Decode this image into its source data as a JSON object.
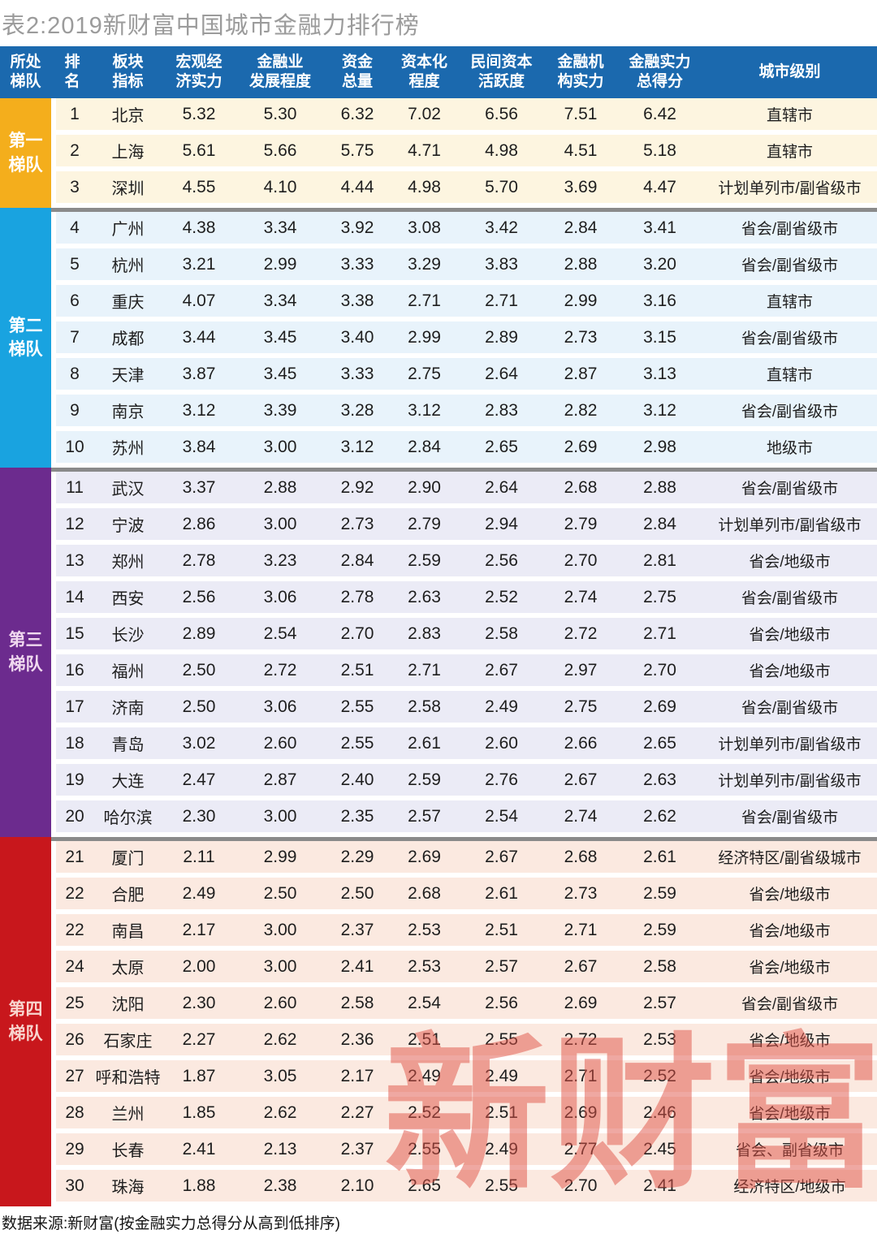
{
  "title": "表2:2019新财富中国城市金融力排行榜",
  "footer": "数据来源:新财富(按金融实力总得分从高到低排序)",
  "watermark": {
    "text": "新财富",
    "color": "#e15347",
    "opacity": 0.5
  },
  "colors": {
    "header_bg": "#1b69ae",
    "header_text": "#ffffff",
    "title_text": "#9b9b9b",
    "tier_separator": "#8a8a8a"
  },
  "header": {
    "columns": [
      {
        "key": "tier",
        "label": "所处\n梯队"
      },
      {
        "key": "rank",
        "label": "排\n名"
      },
      {
        "key": "city",
        "label": "板块\n指标"
      },
      {
        "key": "macro-economy",
        "label": "宏观经\n济实力"
      },
      {
        "key": "financial-industry",
        "label": "金融业\n发展程度"
      },
      {
        "key": "total-funds",
        "label": "资金\n总量"
      },
      {
        "key": "capitalization",
        "label": "资本化\n程度"
      },
      {
        "key": "private-capital",
        "label": "民间资本\n活跃度"
      },
      {
        "key": "financial-institutions",
        "label": "金融机\n构实力"
      },
      {
        "key": "total-score",
        "label": "金融实力\n总得分"
      },
      {
        "key": "city-level",
        "label": "城市级别"
      }
    ]
  },
  "tiers": [
    {
      "tier": 1,
      "name": "第一\n梯队",
      "label_bg": "#f4ae1c",
      "label_text": "#ffffff",
      "row_bg": "#fdf5e0"
    },
    {
      "tier": 2,
      "name": "第二\n梯队",
      "label_bg": "#19a3e0",
      "label_text": "#ffffff",
      "row_bg": "#e8f3fb"
    },
    {
      "tier": 3,
      "name": "第三\n梯队",
      "label_bg": "#6c2b8e",
      "label_text": "#f0d9ef",
      "row_bg": "#ebebf6"
    },
    {
      "tier": 4,
      "name": "第四\n梯队",
      "label_bg": "#c8171c",
      "label_text": "#f8d5ce",
      "row_bg": "#fbe9e0"
    }
  ],
  "chart_data": {
    "type": "table",
    "title": "表2:2019新财富中国城市金融力排行榜",
    "columns": [
      "所处梯队",
      "排名",
      "板块指标",
      "宏观经济实力",
      "金融业发展程度",
      "资金总量",
      "资本化程度",
      "民间资本活跃度",
      "金融机构实力",
      "金融实力总得分",
      "城市级别"
    ],
    "rows": [
      {
        "tier": 1,
        "rank": "1",
        "city": "北京",
        "values": [
          "5.32",
          "5.30",
          "6.32",
          "7.02",
          "6.56",
          "7.51",
          "6.42"
        ],
        "level": "直辖市"
      },
      {
        "tier": 1,
        "rank": "2",
        "city": "上海",
        "values": [
          "5.61",
          "5.66",
          "5.75",
          "4.71",
          "4.98",
          "4.51",
          "5.18"
        ],
        "level": "直辖市"
      },
      {
        "tier": 1,
        "rank": "3",
        "city": "深圳",
        "values": [
          "4.55",
          "4.10",
          "4.44",
          "4.98",
          "5.70",
          "3.69",
          "4.47"
        ],
        "level": "计划单列市/副省级市"
      },
      {
        "tier": 2,
        "rank": "4",
        "city": "广州",
        "values": [
          "4.38",
          "3.34",
          "3.92",
          "3.08",
          "3.42",
          "2.84",
          "3.41"
        ],
        "level": "省会/副省级市"
      },
      {
        "tier": 2,
        "rank": "5",
        "city": "杭州",
        "values": [
          "3.21",
          "2.99",
          "3.33",
          "3.29",
          "3.83",
          "2.88",
          "3.20"
        ],
        "level": "省会/副省级市"
      },
      {
        "tier": 2,
        "rank": "6",
        "city": "重庆",
        "values": [
          "4.07",
          "3.34",
          "3.38",
          "2.71",
          "2.71",
          "2.99",
          "3.16"
        ],
        "level": "直辖市"
      },
      {
        "tier": 2,
        "rank": "7",
        "city": "成都",
        "values": [
          "3.44",
          "3.45",
          "3.40",
          "2.99",
          "2.89",
          "2.73",
          "3.15"
        ],
        "level": "省会/副省级市"
      },
      {
        "tier": 2,
        "rank": "8",
        "city": "天津",
        "values": [
          "3.87",
          "3.45",
          "3.33",
          "2.75",
          "2.64",
          "2.87",
          "3.13"
        ],
        "level": "直辖市"
      },
      {
        "tier": 2,
        "rank": "9",
        "city": "南京",
        "values": [
          "3.12",
          "3.39",
          "3.28",
          "3.12",
          "2.83",
          "2.82",
          "3.12"
        ],
        "level": "省会/副省级市"
      },
      {
        "tier": 2,
        "rank": "10",
        "city": "苏州",
        "values": [
          "3.84",
          "3.00",
          "3.12",
          "2.84",
          "2.65",
          "2.69",
          "2.98"
        ],
        "level": "地级市"
      },
      {
        "tier": 3,
        "rank": "11",
        "city": "武汉",
        "values": [
          "3.37",
          "2.88",
          "2.92",
          "2.90",
          "2.64",
          "2.68",
          "2.88"
        ],
        "level": "省会/副省级市"
      },
      {
        "tier": 3,
        "rank": "12",
        "city": "宁波",
        "values": [
          "2.86",
          "3.00",
          "2.73",
          "2.79",
          "2.94",
          "2.79",
          "2.84"
        ],
        "level": "计划单列市/副省级市"
      },
      {
        "tier": 3,
        "rank": "13",
        "city": "郑州",
        "values": [
          "2.78",
          "3.23",
          "2.84",
          "2.59",
          "2.56",
          "2.70",
          "2.81"
        ],
        "level": "省会/地级市"
      },
      {
        "tier": 3,
        "rank": "14",
        "city": "西安",
        "values": [
          "2.56",
          "3.06",
          "2.78",
          "2.63",
          "2.52",
          "2.74",
          "2.75"
        ],
        "level": "省会/副省级市"
      },
      {
        "tier": 3,
        "rank": "15",
        "city": "长沙",
        "values": [
          "2.89",
          "2.54",
          "2.70",
          "2.83",
          "2.58",
          "2.72",
          "2.71"
        ],
        "level": "省会/地级市"
      },
      {
        "tier": 3,
        "rank": "16",
        "city": "福州",
        "values": [
          "2.50",
          "2.72",
          "2.51",
          "2.71",
          "2.67",
          "2.97",
          "2.70"
        ],
        "level": "省会/地级市"
      },
      {
        "tier": 3,
        "rank": "17",
        "city": "济南",
        "values": [
          "2.50",
          "3.06",
          "2.55",
          "2.58",
          "2.49",
          "2.75",
          "2.69"
        ],
        "level": "省会/副省级市"
      },
      {
        "tier": 3,
        "rank": "18",
        "city": "青岛",
        "values": [
          "3.02",
          "2.60",
          "2.55",
          "2.61",
          "2.60",
          "2.66",
          "2.65"
        ],
        "level": "计划单列市/副省级市"
      },
      {
        "tier": 3,
        "rank": "19",
        "city": "大连",
        "values": [
          "2.47",
          "2.87",
          "2.40",
          "2.59",
          "2.76",
          "2.67",
          "2.63"
        ],
        "level": "计划单列市/副省级市"
      },
      {
        "tier": 3,
        "rank": "20",
        "city": "哈尔滨",
        "values": [
          "2.30",
          "3.00",
          "2.35",
          "2.57",
          "2.54",
          "2.74",
          "2.62"
        ],
        "level": "省会/副省级市"
      },
      {
        "tier": 4,
        "rank": "21",
        "city": "厦门",
        "values": [
          "2.11",
          "2.99",
          "2.29",
          "2.69",
          "2.67",
          "2.68",
          "2.61"
        ],
        "level": "经济特区/副省级城市"
      },
      {
        "tier": 4,
        "rank": "22",
        "city": "合肥",
        "values": [
          "2.49",
          "2.50",
          "2.50",
          "2.68",
          "2.61",
          "2.73",
          "2.59"
        ],
        "level": "省会/地级市"
      },
      {
        "tier": 4,
        "rank": "22",
        "city": "南昌",
        "values": [
          "2.17",
          "3.00",
          "2.37",
          "2.53",
          "2.51",
          "2.71",
          "2.59"
        ],
        "level": "省会/地级市"
      },
      {
        "tier": 4,
        "rank": "24",
        "city": "太原",
        "values": [
          "2.00",
          "3.00",
          "2.41",
          "2.53",
          "2.57",
          "2.67",
          "2.58"
        ],
        "level": "省会/地级市"
      },
      {
        "tier": 4,
        "rank": "25",
        "city": "沈阳",
        "values": [
          "2.30",
          "2.60",
          "2.58",
          "2.54",
          "2.56",
          "2.69",
          "2.57"
        ],
        "level": "省会/副省级市"
      },
      {
        "tier": 4,
        "rank": "26",
        "city": "石家庄",
        "values": [
          "2.27",
          "2.62",
          "2.36",
          "2.51",
          "2.55",
          "2.72",
          "2.53"
        ],
        "level": "省会/地级市"
      },
      {
        "tier": 4,
        "rank": "27",
        "city": "呼和浩特",
        "values": [
          "1.87",
          "3.05",
          "2.17",
          "2.49",
          "2.49",
          "2.71",
          "2.52"
        ],
        "level": "省会/地级市"
      },
      {
        "tier": 4,
        "rank": "28",
        "city": "兰州",
        "values": [
          "1.85",
          "2.62",
          "2.27",
          "2.52",
          "2.51",
          "2.69",
          "2.46"
        ],
        "level": "省会/地级市"
      },
      {
        "tier": 4,
        "rank": "29",
        "city": "长春",
        "values": [
          "2.41",
          "2.13",
          "2.37",
          "2.55",
          "2.49",
          "2.77",
          "2.45"
        ],
        "level": "省会、副省级市"
      },
      {
        "tier": 4,
        "rank": "30",
        "city": "珠海",
        "values": [
          "1.88",
          "2.38",
          "2.10",
          "2.65",
          "2.55",
          "2.70",
          "2.41"
        ],
        "level": "经济特区/地级市"
      }
    ]
  }
}
